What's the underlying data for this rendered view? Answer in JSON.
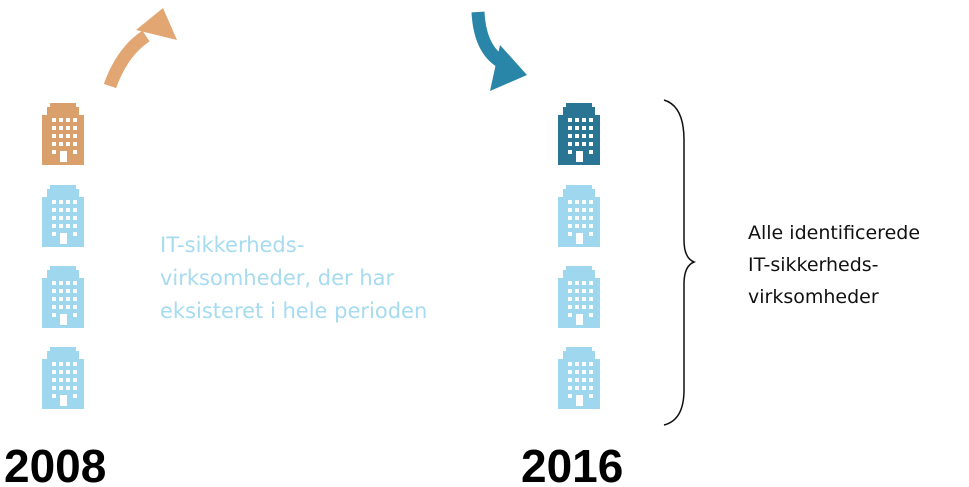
{
  "diagram": {
    "years": [
      "2008",
      "2016"
    ],
    "middle_label": [
      "IT-sikkerheds-",
      "virksomheder, der har",
      "eksisteret i hele perioden"
    ],
    "right_label": [
      "Alle identificerede",
      "IT-sikkerheds-",
      "virksomheder"
    ]
  }
}
